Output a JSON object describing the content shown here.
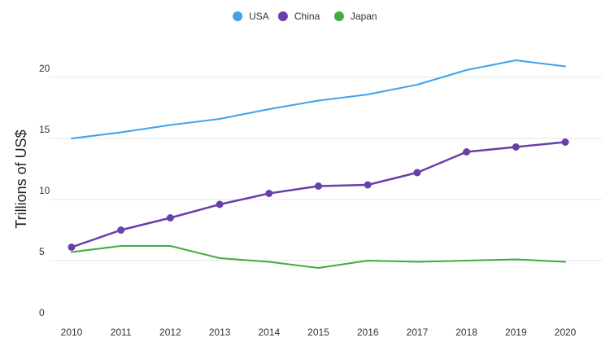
{
  "chart_data": {
    "type": "line",
    "title": "",
    "xlabel": "",
    "ylabel": "Trillions of US$",
    "x": [
      2010,
      2011,
      2012,
      2013,
      2014,
      2015,
      2016,
      2017,
      2018,
      2019,
      2020
    ],
    "ylim": [
      0,
      22.5
    ],
    "yticks": [
      0,
      5,
      10,
      15,
      20
    ],
    "grid": true,
    "legend_position": "top-center",
    "series": [
      {
        "name": "USA",
        "color": "#3ea3ec",
        "markers": false,
        "values": [
          15.0,
          15.5,
          16.1,
          16.6,
          17.4,
          18.1,
          18.6,
          19.4,
          20.6,
          21.4,
          20.9
        ]
      },
      {
        "name": "China",
        "color": "#6b3fa8",
        "markers": true,
        "values": [
          6.1,
          7.5,
          8.5,
          9.6,
          10.5,
          11.1,
          11.2,
          12.2,
          13.9,
          14.3,
          14.7
        ]
      },
      {
        "name": "Japan",
        "color": "#3fac3f",
        "markers": false,
        "values": [
          5.7,
          6.2,
          6.2,
          5.2,
          4.9,
          4.4,
          5.0,
          4.9,
          5.0,
          5.1,
          4.9
        ]
      }
    ]
  }
}
